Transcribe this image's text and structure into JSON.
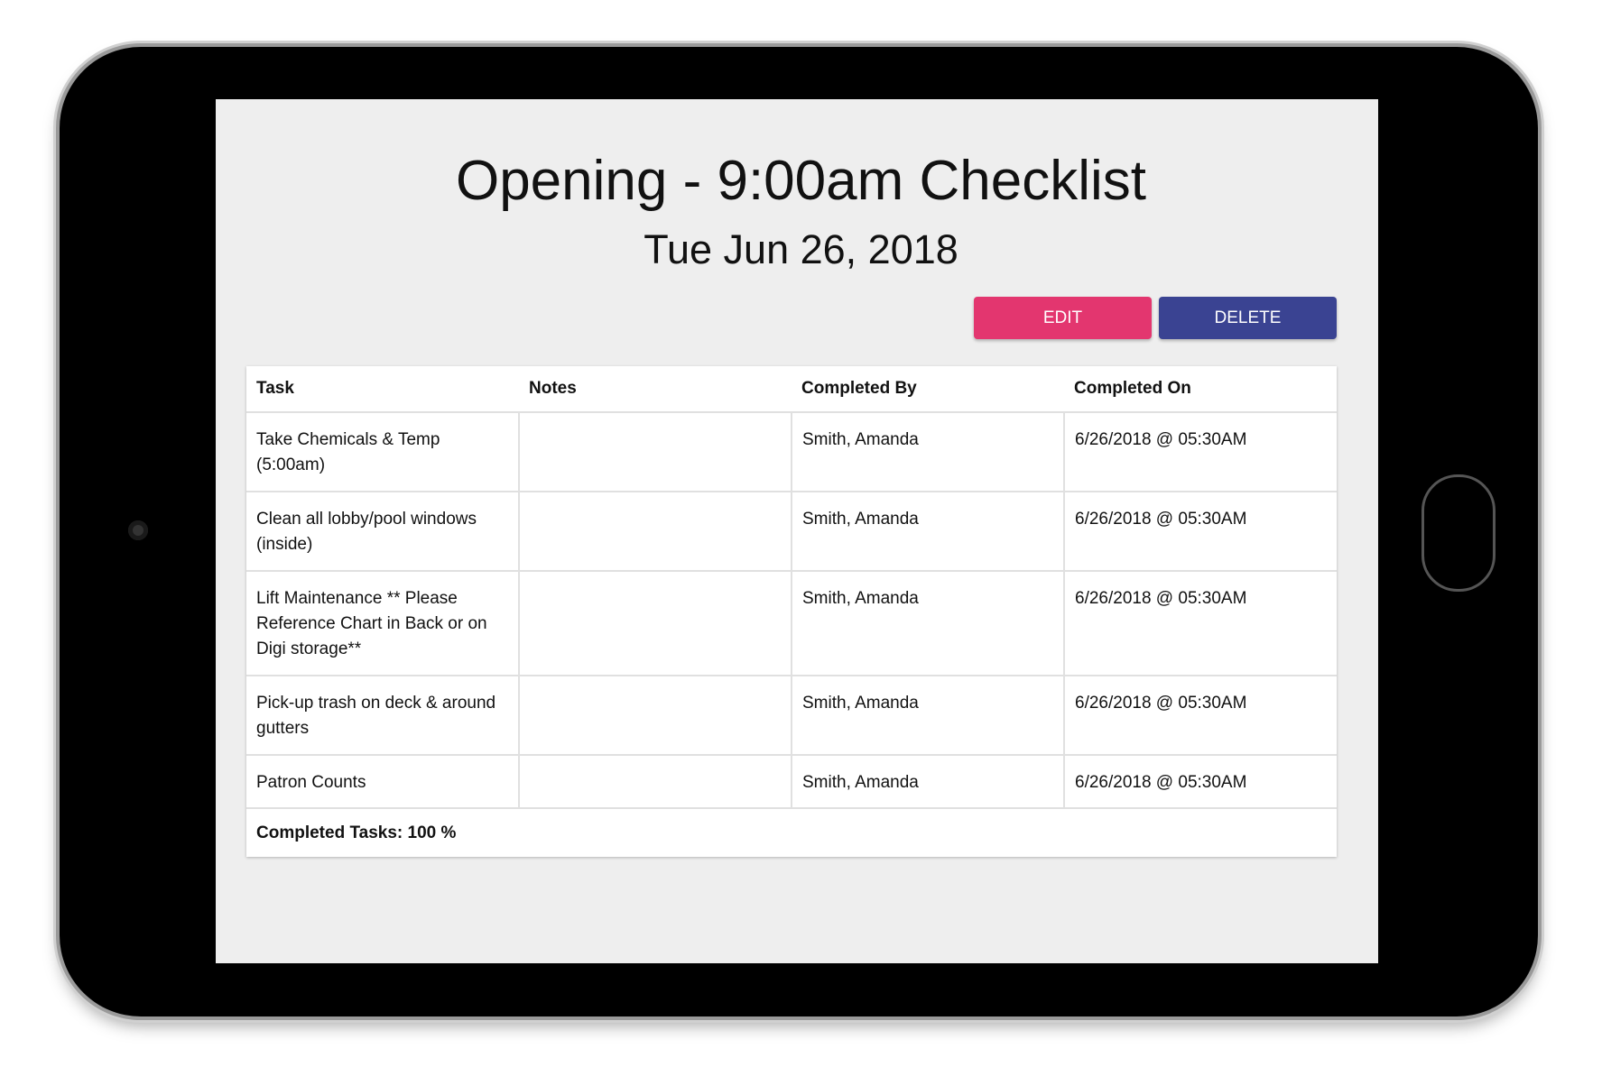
{
  "header": {
    "title": "Opening - 9:00am Checklist",
    "date": "Tue Jun 26, 2018"
  },
  "actions": {
    "edit_label": "EDIT",
    "delete_label": "DELETE",
    "edit_color": "#e3366f",
    "delete_color": "#3a4392"
  },
  "table": {
    "columns": [
      "Task",
      "Notes",
      "Completed By",
      "Completed On"
    ],
    "rows": [
      {
        "task": "Take Chemicals & Temp (5:00am)",
        "notes": "",
        "completed_by": "Smith, Amanda",
        "completed_on": "6/26/2018 @ 05:30AM"
      },
      {
        "task": "Clean all lobby/pool windows (inside)",
        "notes": "",
        "completed_by": "Smith, Amanda",
        "completed_on": "6/26/2018 @ 05:30AM"
      },
      {
        "task": "Lift Maintenance ** Please Reference Chart in Back or on Digi storage**",
        "notes": "",
        "completed_by": "Smith, Amanda",
        "completed_on": "6/26/2018 @ 05:30AM"
      },
      {
        "task": "Pick-up trash on deck & around gutters",
        "notes": "",
        "completed_by": "Smith, Amanda",
        "completed_on": "6/26/2018 @ 05:30AM"
      },
      {
        "task": "Patron Counts",
        "notes": "",
        "completed_by": "Smith, Amanda",
        "completed_on": "6/26/2018 @ 05:30AM"
      }
    ],
    "footer": "Completed Tasks: 100 %"
  }
}
